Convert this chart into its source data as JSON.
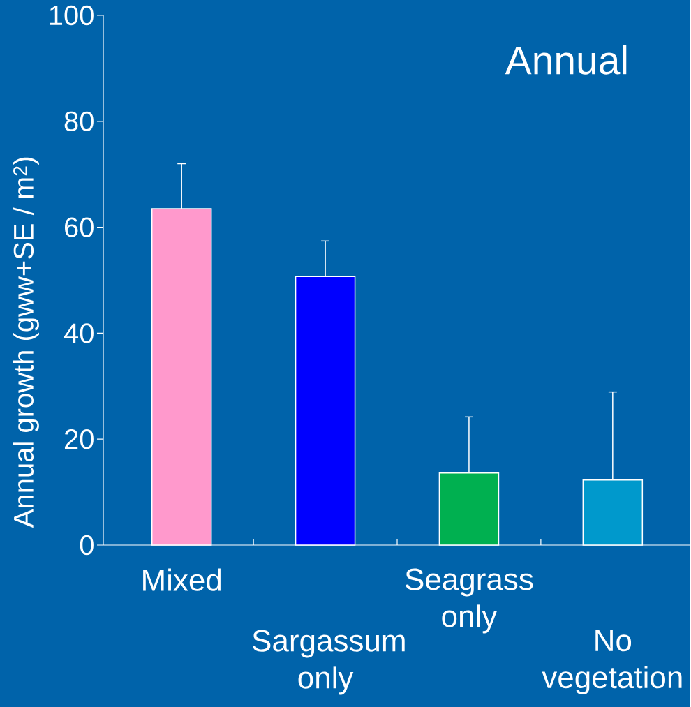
{
  "chart_data": {
    "type": "bar",
    "title": "Annual",
    "ylabel": "Annual growth (gww+SE / m$^{2}$)",
    "categories": [
      "Mixed",
      "Sargassum only",
      "Seagrass only",
      "No vegetation"
    ],
    "values": [
      63.5,
      50.7,
      13.6,
      12.3
    ],
    "colors": [
      "#ff99cc",
      "#0000ff",
      "#00b050",
      "#0099cc"
    ],
    "errors": [
      [
        63.5,
        72
      ],
      [
        50.7,
        57.4
      ],
      [
        13.6,
        24.2
      ],
      [
        12.3,
        28.9
      ]
    ],
    "ylim": [
      0,
      100
    ],
    "yticks": [
      0,
      20,
      40,
      60,
      80,
      100
    ]
  }
}
